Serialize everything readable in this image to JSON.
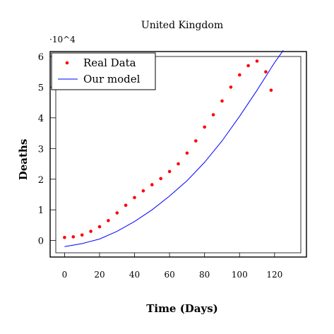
{
  "chart_data": {
    "type": "scatter",
    "title": "United Kingdom",
    "xlabel": "Time (Days)",
    "ylabel": "Deaths",
    "xlim": [
      -5,
      135
    ],
    "ylim": [
      -0.4,
      6
    ],
    "y_scale_label": "·10^4",
    "grid": false,
    "legend_position": "top-left",
    "x_ticks": [
      0,
      20,
      40,
      60,
      80,
      100,
      120
    ],
    "y_ticks": [
      0,
      1,
      2,
      3,
      4,
      5,
      6
    ],
    "series": [
      {
        "name": "Real Data",
        "kind": "points",
        "color": "#ff0000",
        "x": [
          0,
          5,
          10,
          15,
          20,
          25,
          30,
          35,
          40,
          45,
          50,
          55,
          60,
          65,
          70,
          75,
          80,
          85,
          90,
          95,
          100,
          105,
          110,
          115,
          118
        ],
        "y": [
          0.1,
          0.12,
          0.18,
          0.3,
          0.45,
          0.65,
          0.9,
          1.15,
          1.4,
          1.62,
          1.82,
          2.02,
          2.25,
          2.5,
          2.85,
          3.25,
          3.7,
          4.1,
          4.55,
          5.0,
          5.4,
          5.7,
          5.85,
          5.5,
          4.9
        ]
      },
      {
        "name": "Our model",
        "kind": "line",
        "color": "#0000ff",
        "x": [
          0,
          10,
          20,
          30,
          40,
          50,
          60,
          70,
          80,
          90,
          100,
          110,
          120,
          125
        ],
        "y": [
          -0.2,
          -0.1,
          0.05,
          0.3,
          0.62,
          1.0,
          1.45,
          1.95,
          2.55,
          3.25,
          4.05,
          4.9,
          5.8,
          6.2
        ]
      }
    ]
  }
}
